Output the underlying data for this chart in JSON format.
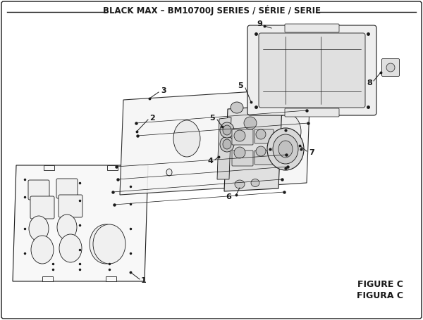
{
  "title": "BLACK MAX – BM10700J SERIES / SÉRIE / SERIE",
  "figure_label": "FIGURE C",
  "figura_label": "FIGURA C",
  "bg_color": "#ffffff",
  "lc": "#1a1a1a",
  "title_fontsize": 8.5,
  "label_fontsize": 8,
  "fig_label_fontsize": 9
}
